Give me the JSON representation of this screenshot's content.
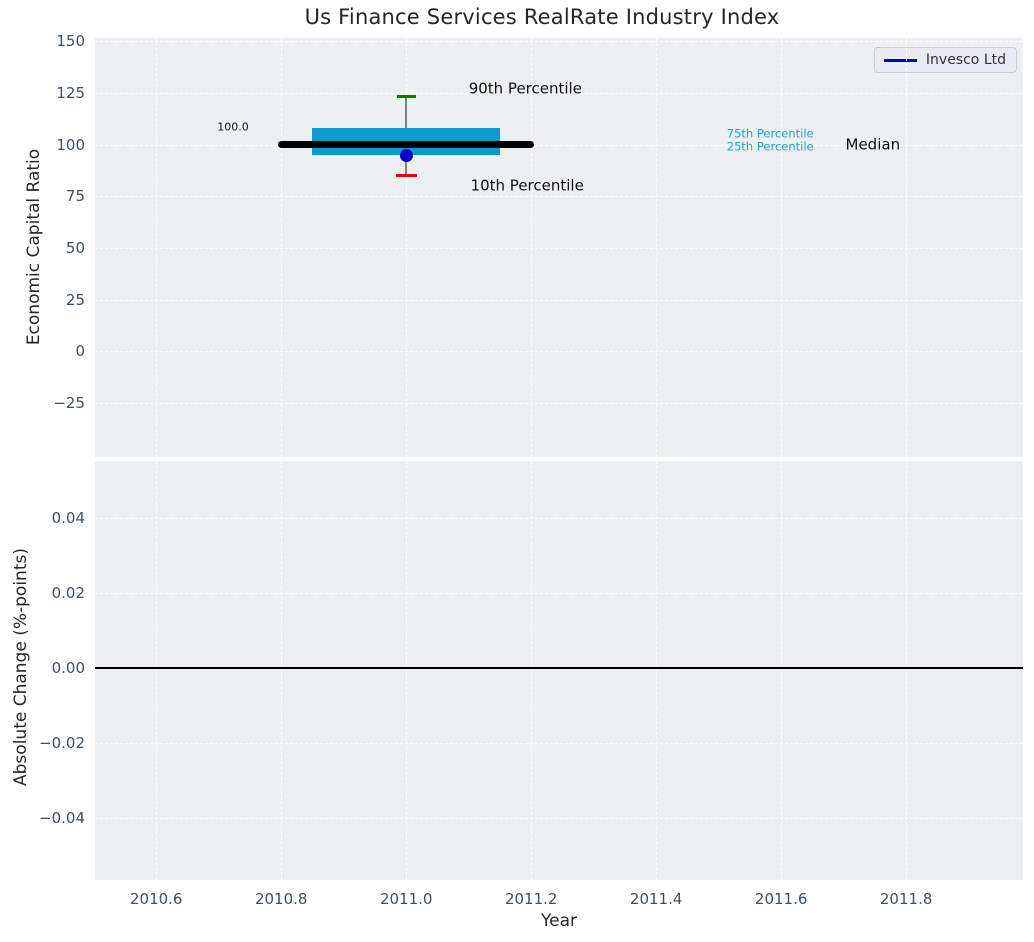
{
  "title": "Us Finance Services RealRate Industry Index",
  "legend": {
    "label": "Invesco Ltd"
  },
  "colors": {
    "plot_bg": "#ecf0f1",
    "grid": "#ffffff",
    "tick_label": "#3e4f66",
    "text": "#262626",
    "box_fill": "#0d9bce",
    "percentile_label": "#22a0d2",
    "median_line": "#000000",
    "company_marker": "#0000cd",
    "p90_cap": "#008000",
    "p10_cap": "#ee0000",
    "whisker": "#808080",
    "zero_line": "#000000"
  },
  "chart_data": [
    {
      "type": "box",
      "title": "Us Finance Services RealRate Industry Index",
      "ylabel": "Economic Capital Ratio",
      "xlim": [
        2010.502,
        2011.987
      ],
      "ylim": [
        -51,
        151.5
      ],
      "grid": true,
      "legend_position": "upper right",
      "yticks": [
        {
          "v": 150,
          "label": "150"
        },
        {
          "v": 125,
          "label": "125"
        },
        {
          "v": 100,
          "label": "100"
        },
        {
          "v": 75,
          "label": "75"
        },
        {
          "v": 50,
          "label": "50"
        },
        {
          "v": 25,
          "label": "25"
        },
        {
          "v": 0,
          "label": "0"
        },
        {
          "v": -25,
          "label": "−25"
        }
      ],
      "box": {
        "x": 2011.0,
        "p90": 123,
        "p75": 108,
        "median": 100.0,
        "p25": 95,
        "p10": 85,
        "box_span": [
          2010.85,
          2011.15
        ],
        "median_span": [
          2010.8,
          2011.2
        ]
      },
      "series": [
        {
          "name": "Invesco Ltd",
          "x": [
            2011.0
          ],
          "y": [
            95.0
          ]
        }
      ],
      "annotations": [
        {
          "text": "100.0",
          "x": 2010.748,
          "y": 107.8,
          "ha": "right",
          "size": 11,
          "color": "#111111"
        },
        {
          "text": "90th Percentile",
          "x": 2011.1,
          "y": 126.9,
          "ha": "left",
          "size": 15,
          "color": "#111111"
        },
        {
          "text": "10th Percentile",
          "x": 2011.103,
          "y": 80.0,
          "ha": "left",
          "size": 15,
          "color": "#111111"
        },
        {
          "text": "75th Percentile",
          "x": 2011.513,
          "y": 104.9,
          "ha": "left",
          "size": 11.5,
          "color": "#22a0d2"
        },
        {
          "text": "25th Percentile",
          "x": 2011.513,
          "y": 98.9,
          "ha": "left",
          "size": 11.5,
          "color": "#22a0d2"
        },
        {
          "text": "Median",
          "x": 2011.703,
          "y": 100.0,
          "ha": "left",
          "size": 15,
          "color": "#111111"
        }
      ]
    },
    {
      "type": "line",
      "ylabel": "Absolute Change (%-points)",
      "xlabel": "Year",
      "xlim": [
        2010.502,
        2011.987
      ],
      "ylim": [
        -0.0565,
        0.0552
      ],
      "grid": true,
      "zero_line_y": 0.0,
      "yticks": [
        {
          "v": 0.04,
          "label": "0.04"
        },
        {
          "v": 0.02,
          "label": "0.02"
        },
        {
          "v": 0,
          "label": "0.00"
        },
        {
          "v": -0.02,
          "label": "−0.02"
        },
        {
          "v": -0.04,
          "label": "−0.04"
        }
      ],
      "xticks": [
        {
          "v": 2010.6,
          "label": "2010.6"
        },
        {
          "v": 2010.8,
          "label": "2010.8"
        },
        {
          "v": 2011.0,
          "label": "2011.0"
        },
        {
          "v": 2011.2,
          "label": "2011.2"
        },
        {
          "v": 2011.4,
          "label": "2011.4"
        },
        {
          "v": 2011.6,
          "label": "2011.6"
        },
        {
          "v": 2011.8,
          "label": "2011.8"
        }
      ]
    }
  ]
}
